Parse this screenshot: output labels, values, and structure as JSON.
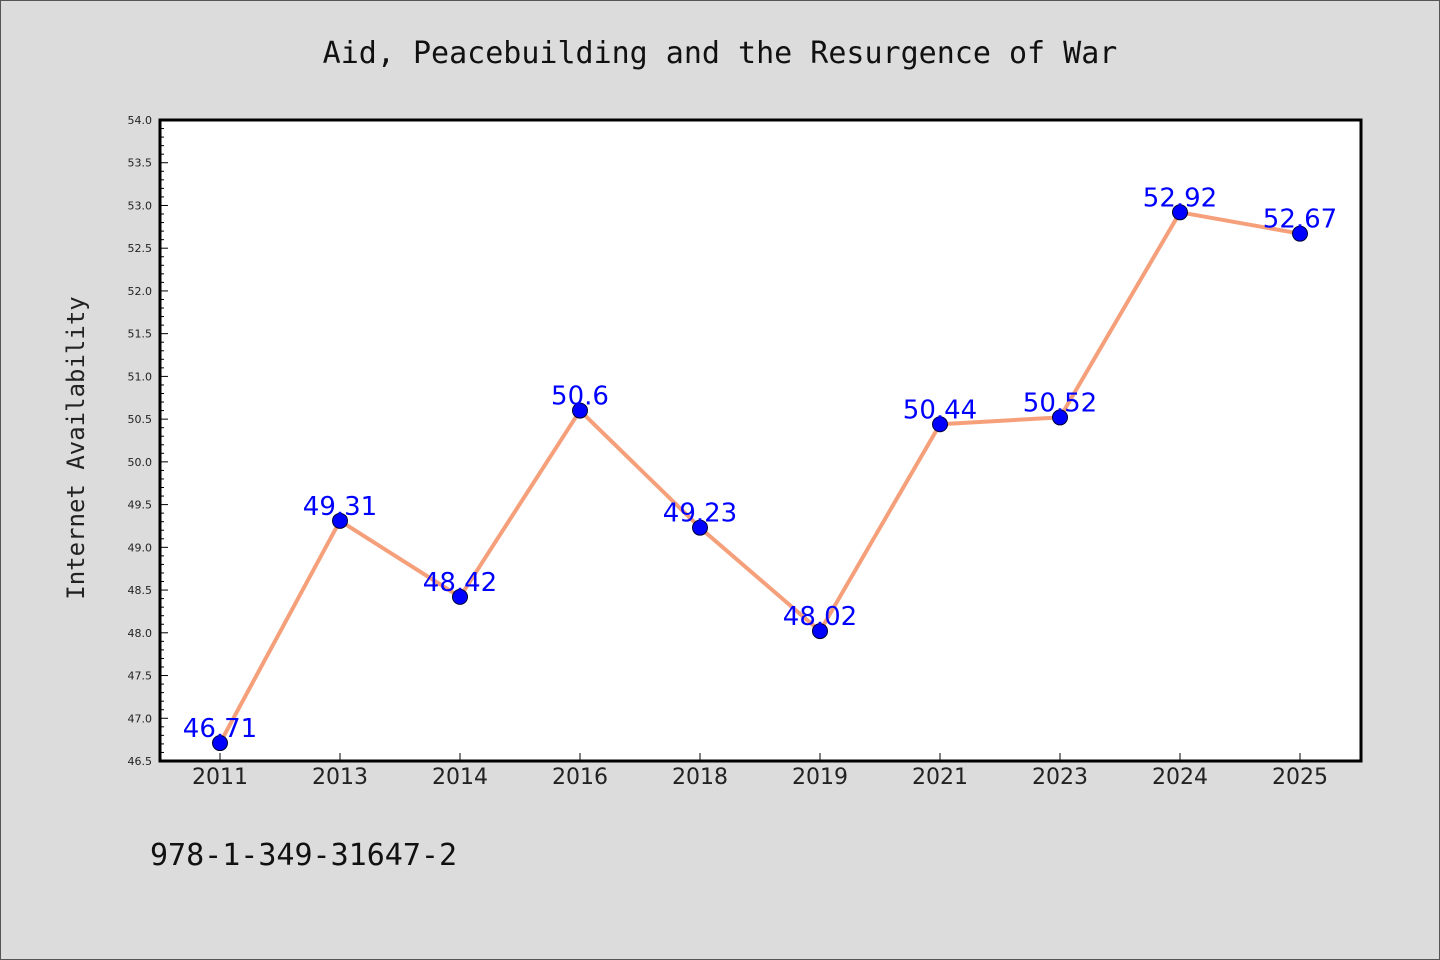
{
  "chart_data": {
    "type": "line",
    "title": "Aid, Peacebuilding and the Resurgence of War",
    "xlabel": "",
    "ylabel": "Internet Availability",
    "categories": [
      "2011",
      "2013",
      "2014",
      "2016",
      "2018",
      "2019",
      "2021",
      "2023",
      "2024",
      "2025"
    ],
    "series": [
      {
        "values": [
          46.71,
          49.31,
          48.42,
          50.6,
          49.23,
          48.02,
          50.44,
          50.52,
          52.92,
          52.67
        ],
        "data_labels": [
          "46.71",
          "49.31",
          "48.42",
          "50.6",
          "49.23",
          "48.02",
          "50.44",
          "50.52",
          "52.92",
          "52.67"
        ]
      }
    ],
    "ylim": [
      46.5,
      54.0
    ],
    "yticks": [
      "46.5",
      "47.0",
      "47.5",
      "48.0",
      "48.5",
      "49.0",
      "49.5",
      "50.0",
      "50.5",
      "51.0",
      "51.5",
      "52.0",
      "52.5",
      "53.0",
      "53.5",
      "54.0"
    ],
    "grid": false,
    "legend": "none",
    "line_color": "#f5a07a",
    "marker_color": "#0000ff",
    "label_color": "#0000ff",
    "background_color": "#dcdcdc",
    "plot_background": "#ffffff"
  },
  "footer": {
    "isbn": "978-1-349-31647-2"
  }
}
